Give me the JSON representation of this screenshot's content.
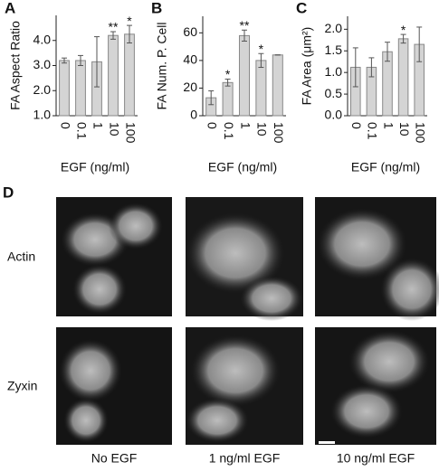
{
  "chart_data": [
    {
      "type": "bar",
      "panel_label": "A",
      "ylabel": "FA Aspect Ratio",
      "xlabel": "EGF (ng/ml)",
      "categories": [
        "0",
        "0.1",
        "1",
        "10",
        "100"
      ],
      "values": [
        3.2,
        3.2,
        3.15,
        4.2,
        4.25
      ],
      "errors": [
        0.1,
        0.2,
        1.0,
        0.15,
        0.35
      ],
      "color": "#d4d4d4",
      "ylim": [
        1.0,
        5.0
      ],
      "yticks": [
        {
          "value": 1,
          "label": "1.0"
        },
        {
          "value": 2,
          "label": "2.0"
        },
        {
          "value": 3,
          "label": "3.0"
        },
        {
          "value": 4,
          "label": "4.0"
        }
      ],
      "annotations": [
        {
          "text": "**",
          "x": "10"
        },
        {
          "text": "*",
          "x": "100"
        }
      ]
    },
    {
      "type": "bar",
      "panel_label": "B",
      "ylabel": "FA Num. P. Cell",
      "xlabel": "EGF (ng/ml)",
      "categories": [
        "0",
        "0.1",
        "1",
        "10",
        "100"
      ],
      "values": [
        13,
        24,
        58,
        40,
        44
      ],
      "errors": [
        5,
        2.5,
        4,
        5,
        0
      ],
      "color": "#d4d4d4",
      "ylim": [
        0,
        72
      ],
      "yticks": [
        0,
        20,
        40,
        60
      ],
      "annotations": [
        {
          "text": "*",
          "x": "0.1"
        },
        {
          "text": "**",
          "x": "1"
        },
        {
          "text": "*",
          "x": "10"
        }
      ]
    },
    {
      "type": "bar",
      "panel_label": "C",
      "ylabel": "FA Area (μm²)",
      "xlabel": "EGF (ng/ml)",
      "categories": [
        "0",
        "0.1",
        "1",
        "10",
        "100"
      ],
      "values": [
        1.12,
        1.12,
        1.48,
        1.78,
        1.65
      ],
      "errors": [
        0.45,
        0.22,
        0.22,
        0.1,
        0.4
      ],
      "color": "#d4d4d4",
      "ylim": [
        0,
        2.3
      ],
      "yticks": [
        {
          "value": 0,
          "label": "0.0"
        },
        0.5,
        {
          "value": 1,
          "label": "1.0"
        },
        1.5,
        {
          "value": 2,
          "label": "2.0"
        }
      ],
      "annotations": [
        {
          "text": "*",
          "x": "10"
        }
      ]
    }
  ],
  "panel_d": {
    "label": "D",
    "rows": [
      "Actin",
      "Zyxin"
    ],
    "columns": [
      "No EGF",
      "1 ng/ml EGF",
      "10 ng/ml EGF"
    ]
  }
}
